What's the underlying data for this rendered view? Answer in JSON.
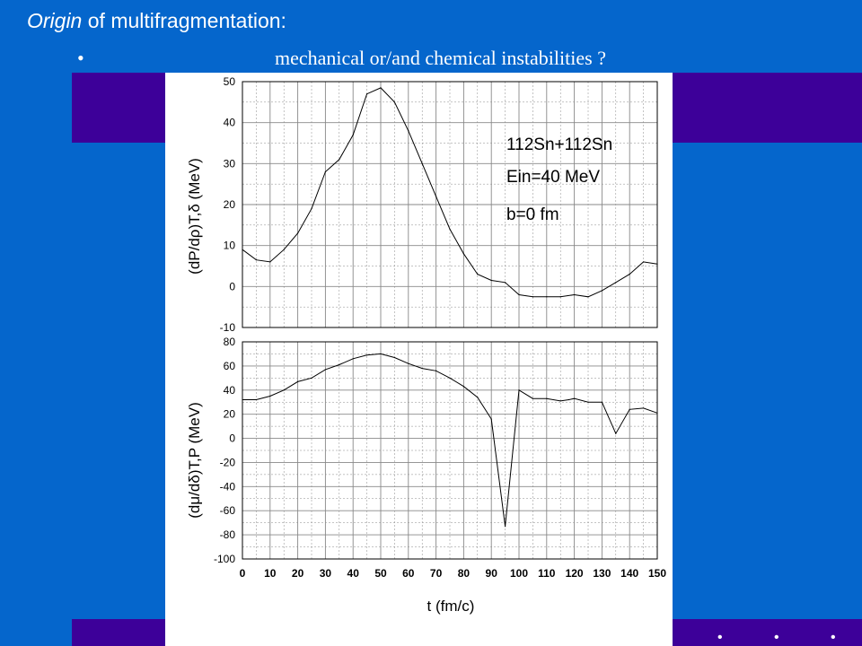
{
  "slide": {
    "title_italic": "Origin",
    "title_rest": "of multifragmentation:",
    "bullet": "•",
    "subtitle": "mechanical or/and chemical instabilities ?",
    "colors": {
      "background": "#0566CC",
      "band": "#3D0099",
      "text": "#FFFFFF"
    },
    "decorative_bullets": [
      "•",
      "•",
      "•"
    ]
  },
  "chart_data": [
    {
      "type": "line",
      "panel": "top",
      "ylabel": "(dP/dρ)T,δ (MeV)",
      "ylim": [
        -10,
        50
      ],
      "yticks": [
        50,
        40,
        30,
        20,
        10,
        0,
        -10
      ],
      "xlim": [
        0,
        150
      ],
      "grid": true,
      "annotation": [
        "112Sn+112Sn",
        "Ein=40 MeV",
        "b=0 fm"
      ],
      "x": [
        0,
        5,
        10,
        15,
        20,
        25,
        30,
        35,
        40,
        45,
        50,
        55,
        60,
        65,
        70,
        75,
        80,
        85,
        90,
        95,
        100,
        105,
        110,
        115,
        120,
        125,
        130,
        135,
        140,
        145,
        150
      ],
      "values": [
        9,
        6.5,
        6,
        9,
        13,
        19,
        28,
        31,
        37,
        47,
        48.5,
        45,
        38,
        30,
        22,
        14,
        8,
        3,
        1.5,
        1,
        -2,
        -2.5,
        -2.5,
        -2.5,
        -2,
        -2.5,
        -1,
        1,
        3,
        6,
        5.5
      ]
    },
    {
      "type": "line",
      "panel": "bottom",
      "xlabel": "t (fm/c)",
      "ylabel": "(dμ/dδ)T,P (MeV)",
      "ylim": [
        -100,
        80
      ],
      "yticks": [
        80,
        60,
        40,
        20,
        0,
        -20,
        -40,
        -60,
        -80,
        -100
      ],
      "xlim": [
        0,
        150
      ],
      "xticks": [
        0,
        10,
        20,
        30,
        40,
        50,
        60,
        70,
        80,
        90,
        100,
        110,
        120,
        130,
        140,
        150
      ],
      "grid": true,
      "x": [
        0,
        5,
        10,
        15,
        20,
        25,
        30,
        35,
        40,
        45,
        50,
        55,
        60,
        65,
        70,
        75,
        80,
        85,
        90,
        95,
        100,
        105,
        110,
        115,
        118,
        120,
        125,
        130,
        135,
        140,
        145,
        150
      ],
      "values": [
        32,
        32,
        35,
        40,
        47,
        50,
        57,
        61,
        66,
        69,
        70,
        67,
        62,
        58,
        56,
        50,
        43,
        34,
        16,
        -73,
        40,
        33,
        33,
        31,
        32,
        33,
        30,
        30,
        4,
        24,
        25,
        21
      ]
    }
  ]
}
